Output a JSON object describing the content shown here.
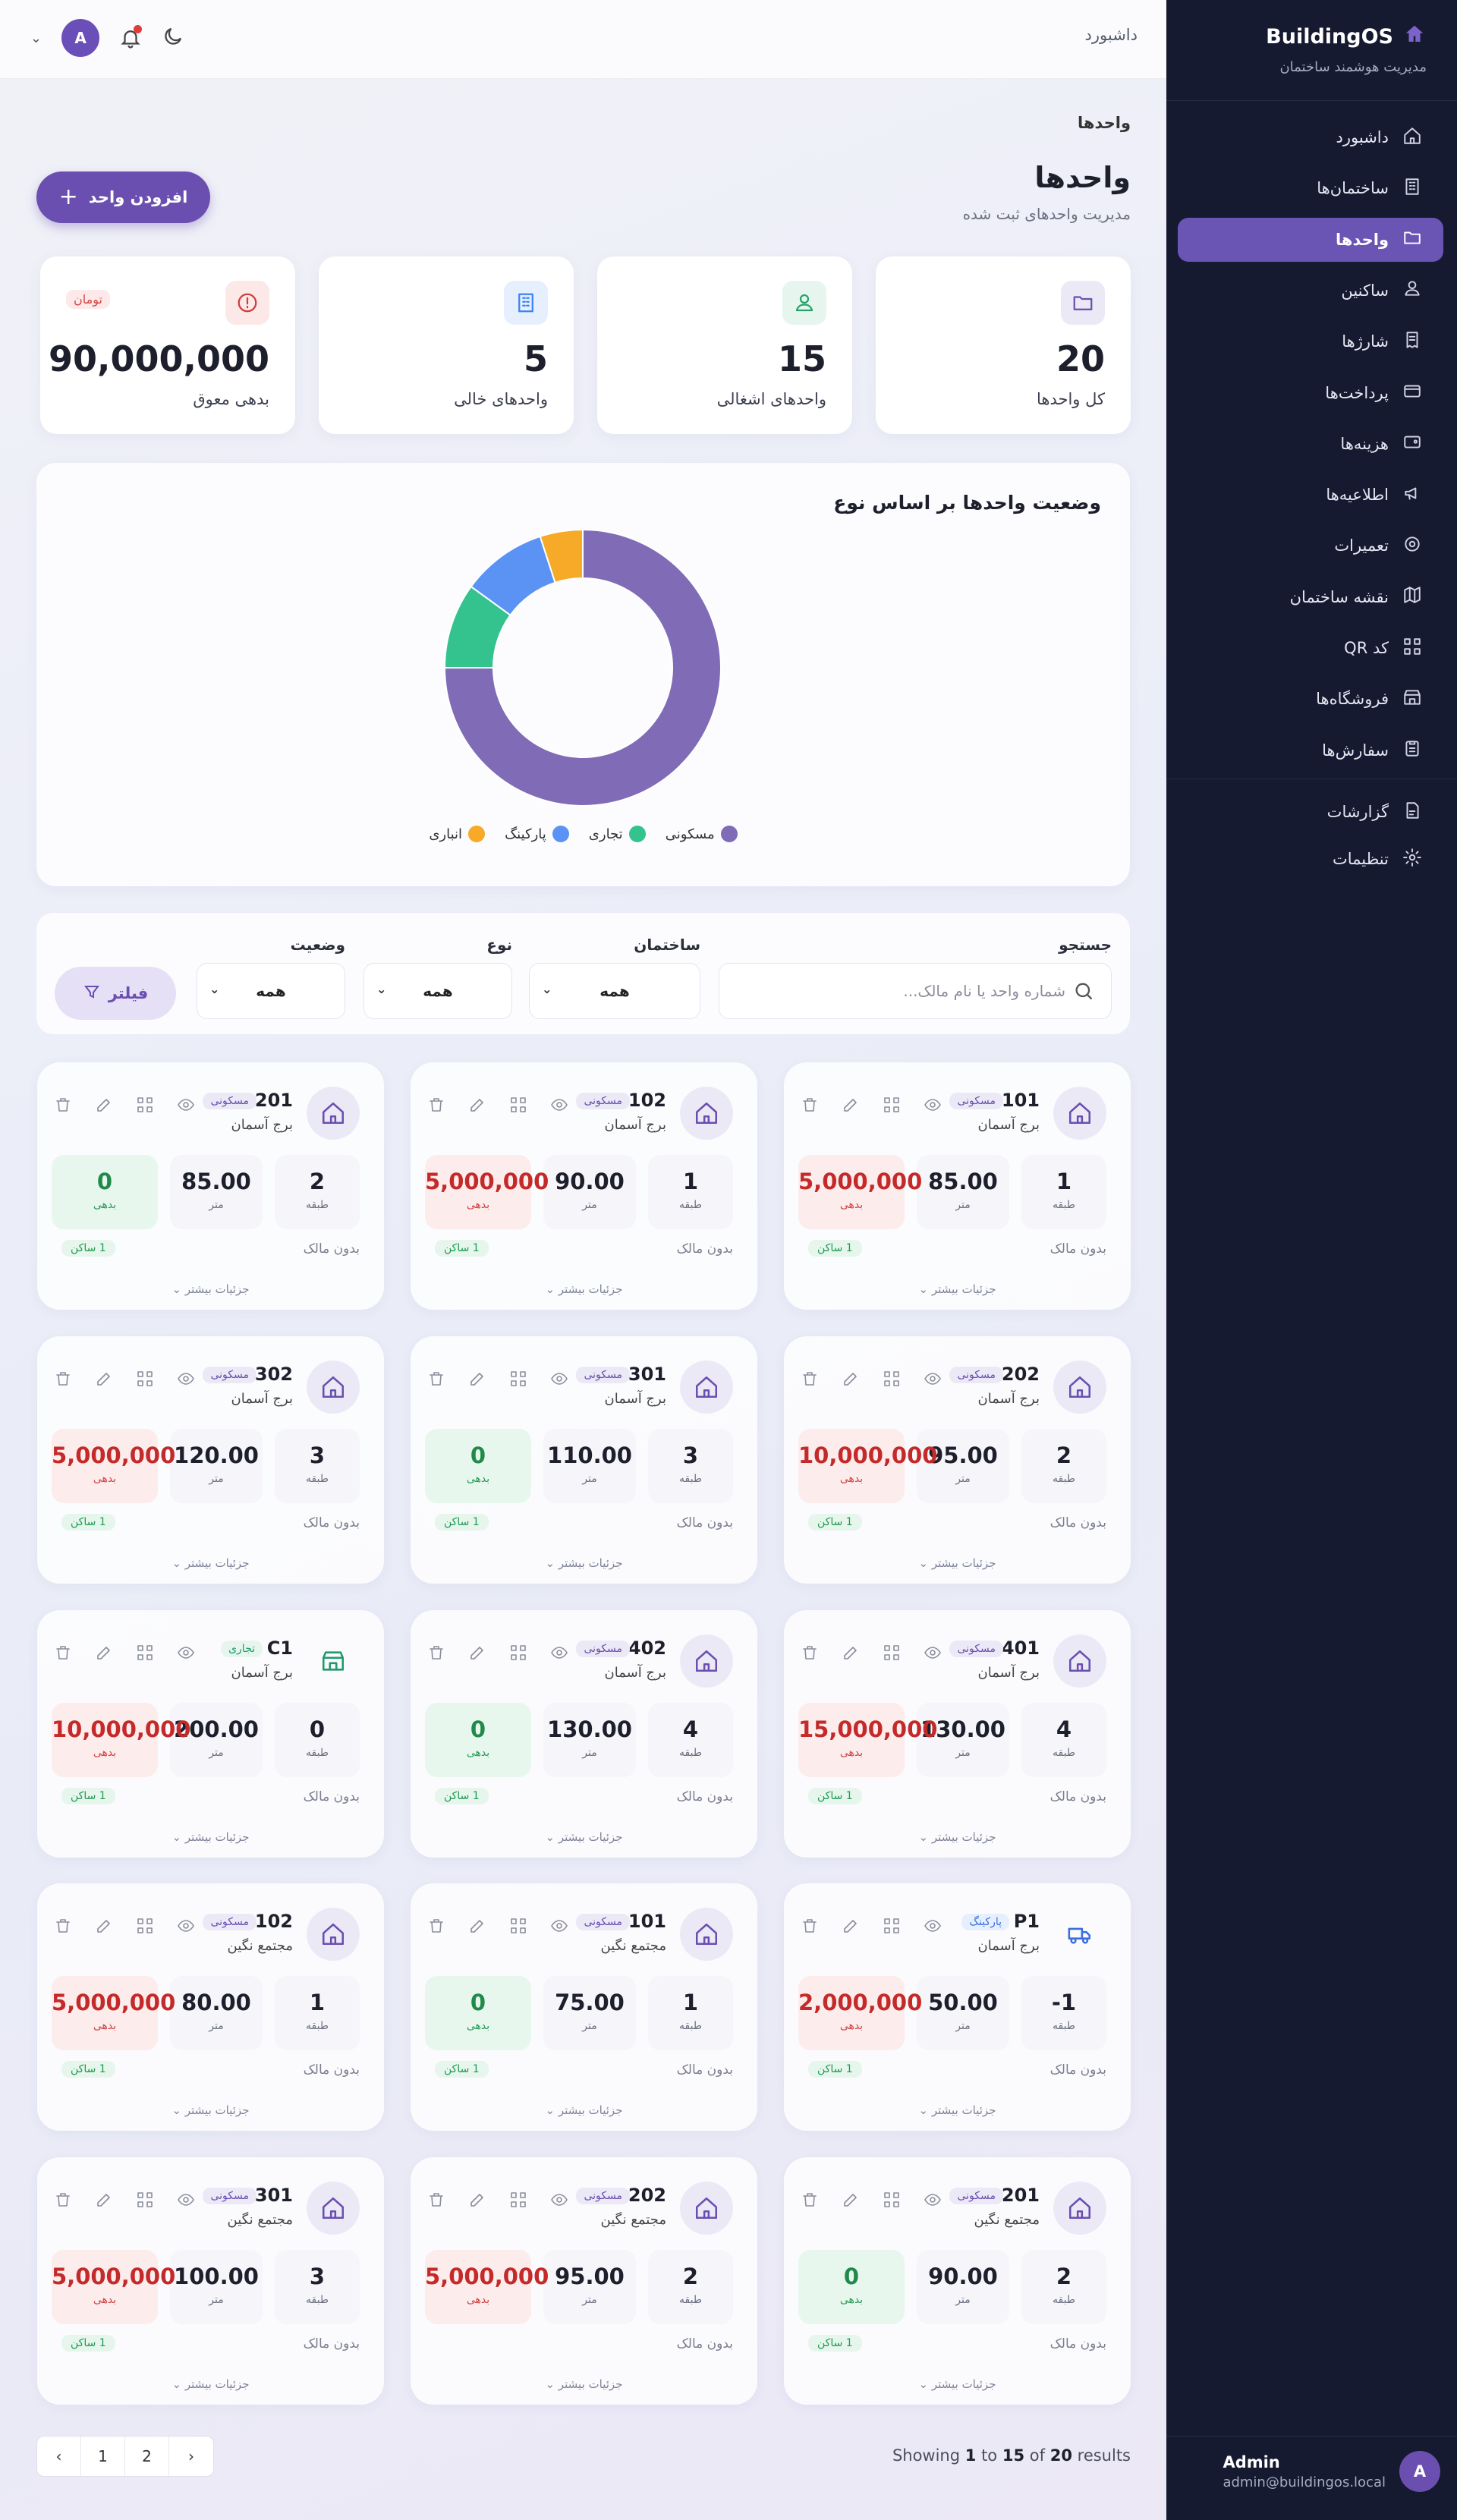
{
  "topbar": {
    "breadcrumb": "داشبورد",
    "avatar_letter": "A"
  },
  "page": {
    "breadcrumb": "واحدها",
    "title": "واحدها",
    "subtitle": "مدیریت واحدهای ثبت شده",
    "add_button": "افزودن واحد"
  },
  "stats": [
    {
      "value": "20",
      "label": "کل واحدها",
      "icon": "folder-icon",
      "color": "#6a4fb0",
      "bg": "#ece9f7"
    },
    {
      "value": "15",
      "label": "واحدهای اشغالی",
      "icon": "user-icon",
      "color": "#23a36a",
      "bg": "#e6f6ee"
    },
    {
      "value": "5",
      "label": "واحدهای خالی",
      "icon": "building-icon",
      "color": "#3b82f6",
      "bg": "#e6effd"
    },
    {
      "value": "90,000,000",
      "label": "بدهی معوق",
      "icon": "alert-icon",
      "color": "#d33a3a",
      "bg": "#fde8e8",
      "unit": "تومان"
    }
  ],
  "chart_data": {
    "type": "pie",
    "title": "وضعیت واحدها بر اساس نوع",
    "labels": [
      "مسکونی",
      "تجاری",
      "پارکینگ",
      "انباری"
    ],
    "values": [
      15,
      2,
      2,
      1
    ],
    "colors": [
      "#7f6bb6",
      "#34c38f",
      "#5b93f5",
      "#f7a928"
    ]
  },
  "filters": {
    "search_label": "جستجو",
    "search_placeholder": "شماره واحد یا نام مالک...",
    "building_label": "ساختمان",
    "building_value": "همه",
    "type_label": "نوع",
    "type_value": "همه",
    "status_label": "وضعیت",
    "status_value": "همه",
    "filter_button": "فیلتر"
  },
  "labels": {
    "floor": "طبقه",
    "area": "متر",
    "debt": "بدهی",
    "owner": "بدون مالک",
    "residents": "1 ساکن",
    "more": "جزئیات بیشتر"
  },
  "units": [
    {
      "number": "101",
      "type": "مسکونی",
      "kind": "res",
      "building": "برج آسمان",
      "floor": "1",
      "area": "85.00",
      "debt": "5,000,000",
      "debt_zero": false,
      "residents": true
    },
    {
      "number": "102",
      "type": "مسکونی",
      "kind": "res",
      "building": "برج آسمان",
      "floor": "1",
      "area": "90.00",
      "debt": "5,000,000",
      "debt_zero": false,
      "residents": true
    },
    {
      "number": "201",
      "type": "مسکونی",
      "kind": "res",
      "building": "برج آسمان",
      "floor": "2",
      "area": "85.00",
      "debt": "0",
      "debt_zero": true,
      "residents": true
    },
    {
      "number": "202",
      "type": "مسکونی",
      "kind": "res",
      "building": "برج آسمان",
      "floor": "2",
      "area": "95.00",
      "debt": "10,000,000",
      "debt_zero": false,
      "residents": true
    },
    {
      "number": "301",
      "type": "مسکونی",
      "kind": "res",
      "building": "برج آسمان",
      "floor": "3",
      "area": "110.00",
      "debt": "0",
      "debt_zero": true,
      "residents": true
    },
    {
      "number": "302",
      "type": "مسکونی",
      "kind": "res",
      "building": "برج آسمان",
      "floor": "3",
      "area": "120.00",
      "debt": "5,000,000",
      "debt_zero": false,
      "residents": true
    },
    {
      "number": "401",
      "type": "مسکونی",
      "kind": "res",
      "building": "برج آسمان",
      "floor": "4",
      "area": "130.00",
      "debt": "15,000,000",
      "debt_zero": false,
      "residents": true
    },
    {
      "number": "402",
      "type": "مسکونی",
      "kind": "res",
      "building": "برج آسمان",
      "floor": "4",
      "area": "130.00",
      "debt": "0",
      "debt_zero": true,
      "residents": true
    },
    {
      "number": "C1",
      "type": "تجاری",
      "kind": "com",
      "building": "برج آسمان",
      "floor": "0",
      "area": "200.00",
      "debt": "10,000,000",
      "debt_zero": false,
      "residents": true
    },
    {
      "number": "P1",
      "type": "پارکینگ",
      "kind": "park",
      "building": "برج آسمان",
      "floor": "-1",
      "area": "50.00",
      "debt": "2,000,000",
      "debt_zero": false,
      "residents": true
    },
    {
      "number": "101",
      "type": "مسکونی",
      "kind": "res",
      "building": "مجتمع نگین",
      "floor": "1",
      "area": "75.00",
      "debt": "0",
      "debt_zero": true,
      "residents": true
    },
    {
      "number": "102",
      "type": "مسکونی",
      "kind": "res",
      "building": "مجتمع نگین",
      "floor": "1",
      "area": "80.00",
      "debt": "5,000,000",
      "debt_zero": false,
      "residents": true
    },
    {
      "number": "201",
      "type": "مسکونی",
      "kind": "res",
      "building": "مجتمع نگین",
      "floor": "2",
      "area": "90.00",
      "debt": "0",
      "debt_zero": true,
      "residents": true
    },
    {
      "number": "202",
      "type": "مسکونی",
      "kind": "res",
      "building": "مجتمع نگین",
      "floor": "2",
      "area": "95.00",
      "debt": "5,000,000",
      "debt_zero": false,
      "residents": false
    },
    {
      "number": "301",
      "type": "مسکونی",
      "kind": "res",
      "building": "مجتمع نگین",
      "floor": "3",
      "area": "100.00",
      "debt": "5,000,000",
      "debt_zero": false,
      "residents": true
    }
  ],
  "pagination": {
    "pages": [
      "1",
      "2"
    ],
    "showing_pre": "Showing",
    "from": "1",
    "to_word": "to",
    "to": "15",
    "of_word": "of",
    "total": "20",
    "results": "results"
  },
  "sidebar": {
    "brand": "BuildingOS",
    "subtitle": "مدیریت هوشمند ساختمان",
    "items": [
      {
        "label": "داشبورد",
        "icon": "home-icon"
      },
      {
        "label": "ساختمان‌ها",
        "icon": "building-icon"
      },
      {
        "label": "واحدها",
        "icon": "folder-icon",
        "active": true
      },
      {
        "label": "ساکنین",
        "icon": "user-icon"
      },
      {
        "label": "شارژها",
        "icon": "receipt-icon"
      },
      {
        "label": "پرداخت‌ها",
        "icon": "card-icon"
      },
      {
        "label": "هزینه‌ها",
        "icon": "wallet-icon"
      },
      {
        "label": "اطلاعیه‌ها",
        "icon": "megaphone-icon"
      },
      {
        "label": "تعمیرات",
        "icon": "gear-icon"
      },
      {
        "label": "نقشه ساختمان",
        "icon": "map-icon"
      },
      {
        "label": "کد QR",
        "icon": "qr-icon"
      },
      {
        "label": "فروشگاه‌ها",
        "icon": "store-icon"
      },
      {
        "label": "سفارش‌ها",
        "icon": "clipboard-icon"
      }
    ],
    "items2": [
      {
        "label": "گزارشات",
        "icon": "report-icon"
      },
      {
        "label": "تنظیمات",
        "icon": "settings-icon"
      }
    ],
    "user": {
      "name": "Admin",
      "email": "admin@buildingos.local",
      "letter": "A"
    }
  }
}
